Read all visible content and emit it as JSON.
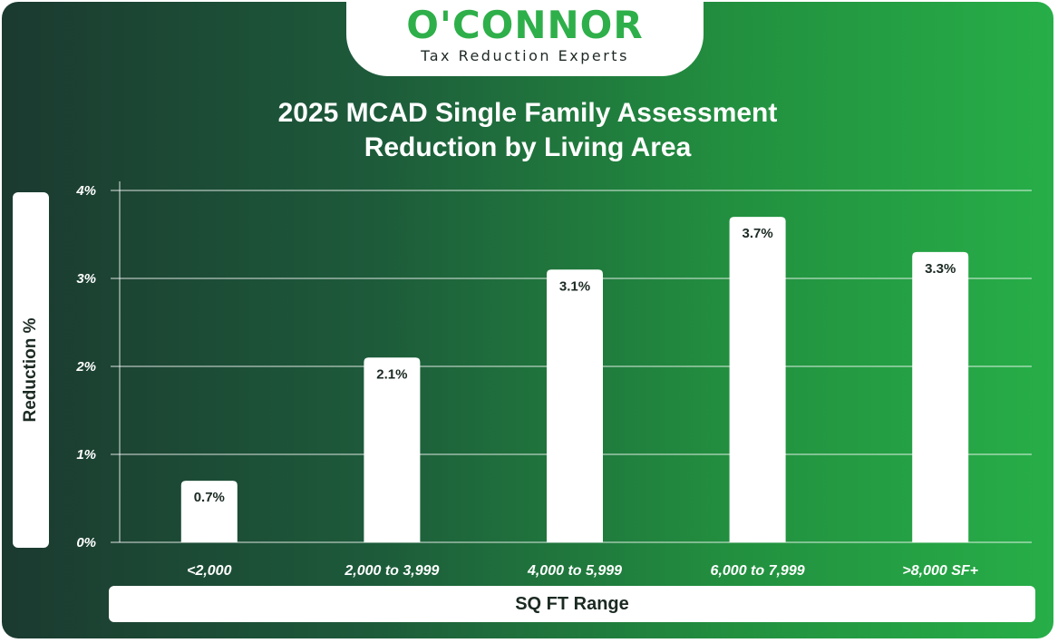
{
  "logo": {
    "brand": "O'CONNOR",
    "tagline": "Tax Reduction Experts"
  },
  "colors": {
    "accent": "#2eaf4a",
    "bar": "#ffffff",
    "gradient_start": "#1b3a30",
    "gradient_end": "#27ae48"
  },
  "chart_data": {
    "type": "bar",
    "title": "2025 MCAD Single Family Assessment Reduction by Living Area",
    "title_lines": [
      "2025 MCAD Single Family Assessment",
      "Reduction by Living Area"
    ],
    "xlabel": "SQ FT Range",
    "ylabel": "Reduction %",
    "categories": [
      "<2,000",
      "2,000 to 3,999",
      "4,000 to 5,999",
      "6,000 to 7,999",
      ">8,000 SF+"
    ],
    "values": [
      0.7,
      2.1,
      3.1,
      3.7,
      3.3
    ],
    "value_labels": [
      "0.7%",
      "2.1%",
      "3.1%",
      "3.7%",
      "3.3%"
    ],
    "yticks": [
      0,
      1,
      2,
      3,
      4
    ],
    "ytick_labels": [
      "0%",
      "1%",
      "2%",
      "3%",
      "4%"
    ],
    "ylim": [
      0,
      4
    ],
    "grid": true,
    "legend": "none"
  }
}
